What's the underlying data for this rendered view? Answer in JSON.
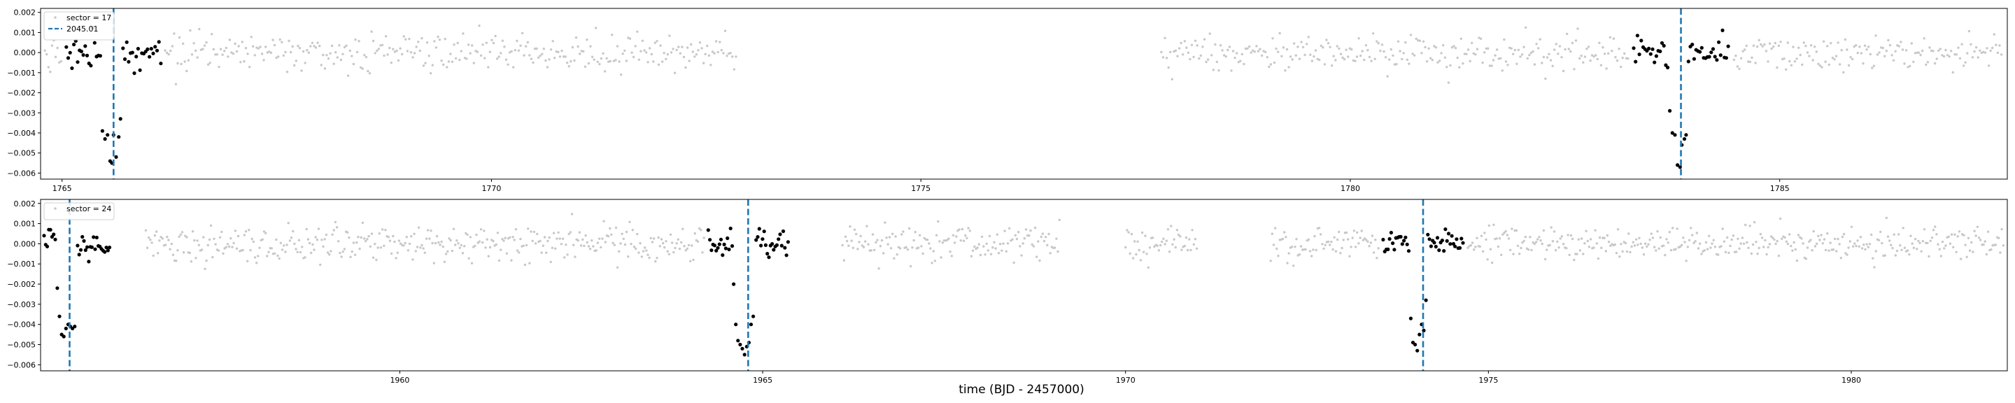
{
  "figure": {
    "xlabel": "time (BJD - 2457000)"
  },
  "chart_data": [
    {
      "type": "scatter",
      "title": "",
      "xlabel": "",
      "ylabel": "",
      "xlim": [
        1764.75,
        1787.65
      ],
      "ylim": [
        -0.0063,
        0.0022
      ],
      "xticks": [
        1765,
        1770,
        1775,
        1780,
        1785
      ],
      "yticks": [
        0.002,
        0.001,
        0.0,
        -0.001,
        -0.002,
        -0.003,
        -0.004,
        -0.005,
        -0.006
      ],
      "ytick_labels": [
        "0.002",
        "0.001",
        "0.000",
        "−0.001",
        "−0.002",
        "−0.003",
        "−0.004",
        "−0.005",
        "−0.006"
      ],
      "grid": false,
      "legend_position": "top-left",
      "legend": [
        {
          "label": "sector = 17",
          "marker": "point",
          "color": "#c8c8c8"
        },
        {
          "label": "2045.01",
          "marker": "dashed-line",
          "color": "#1f77b4"
        }
      ],
      "background_series": {
        "name": "sector = 17",
        "color": "#c8c8c8",
        "scatter": 0.00045,
        "segments": [
          [
            1764.8,
            1772.85
          ],
          [
            1777.8,
            1787.6
          ]
        ],
        "cadence": 0.0209
      },
      "transits": [
        {
          "epoch": 1765.6,
          "color": "#1f77b4",
          "in_transit": [
            {
              "x": 1765.47,
              "y": -0.0039
            },
            {
              "x": 1765.5,
              "y": -0.0043
            },
            {
              "x": 1765.53,
              "y": -0.0041
            },
            {
              "x": 1765.56,
              "y": -0.0054
            },
            {
              "x": 1765.58,
              "y": -0.0055
            },
            {
              "x": 1765.6,
              "y": -0.0041
            },
            {
              "x": 1765.63,
              "y": -0.0052
            },
            {
              "x": 1765.66,
              "y": -0.0042
            },
            {
              "x": 1765.68,
              "y": -0.0033
            }
          ]
        },
        {
          "epoch": 1783.85,
          "color": "#1f77b4",
          "in_transit": [
            {
              "x": 1783.72,
              "y": -0.0029
            },
            {
              "x": 1783.75,
              "y": -0.004
            },
            {
              "x": 1783.78,
              "y": -0.0041
            },
            {
              "x": 1783.81,
              "y": -0.0056
            },
            {
              "x": 1783.84,
              "y": -0.0057
            },
            {
              "x": 1783.86,
              "y": -0.0046
            },
            {
              "x": 1783.89,
              "y": -0.0043
            },
            {
              "x": 1783.91,
              "y": -0.0041
            }
          ]
        }
      ],
      "oot_half_window": 0.55,
      "oot_scatter": 0.0004
    },
    {
      "type": "scatter",
      "title": "",
      "xlabel": "",
      "ylabel": "",
      "xlim": [
        1955.05,
        1982.15
      ],
      "ylim": [
        -0.0063,
        0.0022
      ],
      "xticks": [
        1960,
        1965,
        1970,
        1975,
        1980
      ],
      "yticks": [
        0.002,
        0.001,
        0.0,
        -0.001,
        -0.002,
        -0.003,
        -0.004,
        -0.005,
        -0.006
      ],
      "ytick_labels": [
        "0.002",
        "0.001",
        "0.000",
        "−0.001",
        "−0.002",
        "−0.003",
        "−0.004",
        "−0.005",
        "−0.006"
      ],
      "grid": false,
      "legend_position": "top-left",
      "legend": [
        {
          "label": "sector = 24",
          "marker": "point",
          "color": "#c8c8c8"
        }
      ],
      "background_series": {
        "name": "sector = 24",
        "color": "#c8c8c8",
        "scatter": 0.00045,
        "segments": [
          [
            1955.1,
            1955.55
          ],
          [
            1956.5,
            1964.55
          ],
          [
            1966.1,
            1969.1
          ],
          [
            1970.0,
            1971.0
          ],
          [
            1972.0,
            1982.1
          ]
        ],
        "cadence": 0.0209
      },
      "transits": [
        {
          "epoch": 1955.45,
          "color": "#1f77b4",
          "in_transit": [
            {
              "x": 1955.28,
              "y": -0.0022
            },
            {
              "x": 1955.31,
              "y": -0.0036
            },
            {
              "x": 1955.34,
              "y": -0.0045
            },
            {
              "x": 1955.37,
              "y": -0.0046
            },
            {
              "x": 1955.4,
              "y": -0.0042
            },
            {
              "x": 1955.43,
              "y": -0.004
            },
            {
              "x": 1955.46,
              "y": -0.0041
            },
            {
              "x": 1955.49,
              "y": -0.0042
            },
            {
              "x": 1955.52,
              "y": -0.0041
            }
          ]
        },
        {
          "epoch": 1964.8,
          "color": "#1f77b4",
          "in_transit": [
            {
              "x": 1964.6,
              "y": -0.002
            },
            {
              "x": 1964.63,
              "y": -0.004
            },
            {
              "x": 1964.66,
              "y": -0.0048
            },
            {
              "x": 1964.69,
              "y": -0.005
            },
            {
              "x": 1964.72,
              "y": -0.0052
            },
            {
              "x": 1964.75,
              "y": -0.0055
            },
            {
              "x": 1964.78,
              "y": -0.0051
            },
            {
              "x": 1964.81,
              "y": -0.0049
            },
            {
              "x": 1964.84,
              "y": -0.004
            },
            {
              "x": 1964.87,
              "y": -0.0036
            }
          ]
        },
        {
          "epoch": 1974.1,
          "color": "#1f77b4",
          "in_transit": [
            {
              "x": 1973.93,
              "y": -0.0037
            },
            {
              "x": 1973.96,
              "y": -0.0049
            },
            {
              "x": 1973.99,
              "y": -0.005
            },
            {
              "x": 1974.02,
              "y": -0.0053
            },
            {
              "x": 1974.05,
              "y": -0.0045
            },
            {
              "x": 1974.08,
              "y": -0.004
            },
            {
              "x": 1974.11,
              "y": -0.0043
            },
            {
              "x": 1974.14,
              "y": -0.0028
            }
          ]
        }
      ],
      "oot_half_window": 0.55,
      "oot_scatter": 0.0004
    }
  ]
}
